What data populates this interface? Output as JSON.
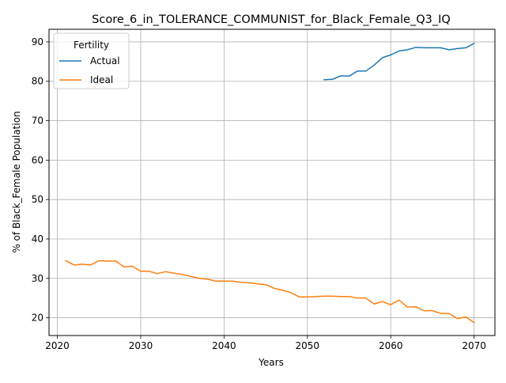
{
  "chart_data": {
    "type": "line",
    "title": "Score_6_in_TOLERANCE_COMMUNIST_for_Black_Female_Q3_IQ",
    "xlabel": "Years",
    "ylabel": "% of Black_Female Population",
    "xlim": [
      2019,
      2072.5
    ],
    "ylim": [
      15.5,
      93.2
    ],
    "xticks": [
      2020,
      2030,
      2040,
      2050,
      2060,
      2070
    ],
    "yticks": [
      20,
      30,
      40,
      50,
      60,
      70,
      80,
      90
    ],
    "grid": true,
    "legend": {
      "title": "Fertility",
      "placement": "top-left"
    },
    "series": [
      {
        "name": "Actual",
        "color": "#1f77b4",
        "x": [
          2052,
          2053,
          2054,
          2055,
          2056,
          2057,
          2058,
          2059,
          2060,
          2061,
          2062,
          2063,
          2064,
          2065,
          2066,
          2067,
          2068,
          2069,
          2070
        ],
        "y": [
          80.4,
          80.5,
          81.4,
          81.3,
          82.6,
          82.6,
          84.1,
          86.0,
          86.7,
          87.7,
          88.0,
          88.6,
          88.5,
          88.5,
          88.5,
          88.0,
          88.3,
          88.5,
          89.6
        ]
      },
      {
        "name": "Ideal",
        "color": "#ff7f0e",
        "x": [
          2021,
          2022,
          2023,
          2024,
          2025,
          2026,
          2027,
          2028,
          2029,
          2030,
          2031,
          2032,
          2033,
          2034,
          2035,
          2036,
          2037,
          2038,
          2039,
          2040,
          2041,
          2042,
          2043,
          2044,
          2045,
          2046,
          2047,
          2048,
          2049,
          2050,
          2051,
          2052,
          2053,
          2054,
          2055,
          2056,
          2057,
          2058,
          2059,
          2060,
          2061,
          2062,
          2063,
          2064,
          2065,
          2066,
          2067,
          2068,
          2069,
          2070
        ],
        "y": [
          34.5,
          33.4,
          33.6,
          33.4,
          34.5,
          34.4,
          34.4,
          32.9,
          33.1,
          31.8,
          31.8,
          31.2,
          31.7,
          31.3,
          31.0,
          30.5,
          30.0,
          29.8,
          29.3,
          29.3,
          29.3,
          29.0,
          28.9,
          28.6,
          28.4,
          27.5,
          27.0,
          26.4,
          25.3,
          25.3,
          25.4,
          25.5,
          25.5,
          25.4,
          25.4,
          25.0,
          25.0,
          23.5,
          24.1,
          23.3,
          24.5,
          22.7,
          22.8,
          21.8,
          21.8,
          21.1,
          21.1,
          19.8,
          20.2,
          18.8
        ]
      }
    ]
  }
}
